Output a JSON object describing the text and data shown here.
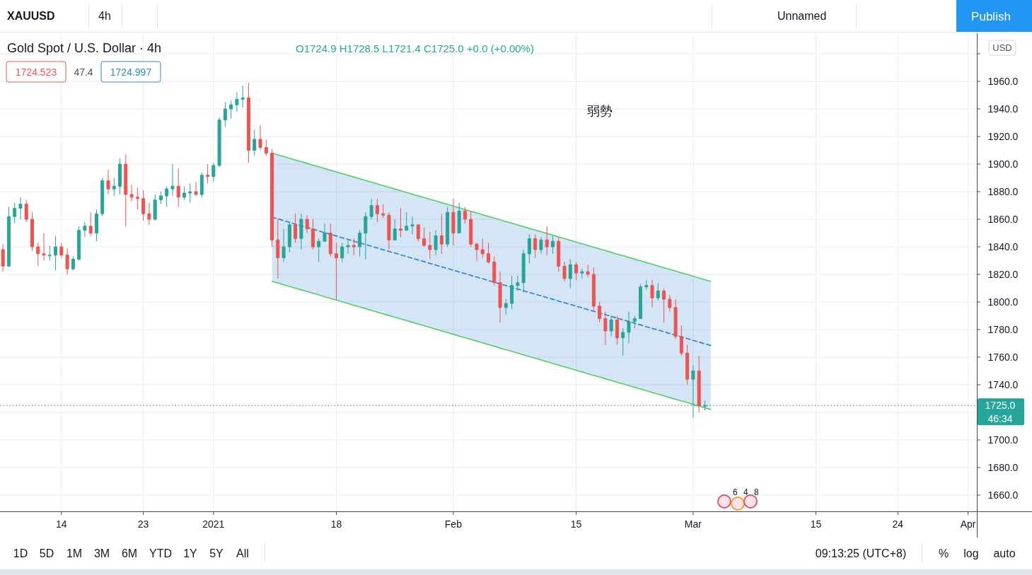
{
  "chart_data": {
    "type": "candlestick",
    "title": "Gold Spot / U.S. Dollar · 4h",
    "subtitle": "O1724.9 H1728.5 L1721.4 C1725.0 +0.0 (+0.00%)",
    "categories": [
      null,
      null,
      null,
      null,
      null,
      null,
      null,
      null,
      null,
      null,
      "14",
      null,
      null,
      null,
      null,
      null,
      null,
      null,
      null,
      null,
      null,
      null,
      null,
      null,
      "23",
      null,
      null,
      null,
      null,
      null,
      null,
      null,
      null,
      null,
      null,
      null,
      "2021",
      null,
      null,
      null,
      null,
      null,
      null,
      null,
      null,
      null,
      null,
      null,
      null,
      null,
      null,
      null,
      null,
      null,
      null,
      null,
      null,
      "18",
      null,
      null,
      null,
      null,
      null,
      null,
      null,
      null,
      null,
      null,
      null,
      null,
      null,
      null,
      null,
      null,
      null,
      null,
      null,
      "Feb",
      null,
      null,
      null,
      null,
      null,
      null,
      null,
      null,
      null,
      null,
      null,
      null,
      null,
      null,
      null,
      null,
      null,
      null,
      null,
      null,
      "15",
      null,
      null,
      null,
      null,
      null,
      null,
      null,
      null,
      null,
      null,
      null,
      null,
      null,
      null,
      null,
      null,
      null,
      null,
      null,
      "Mar",
      null,
      null,
      null,
      null,
      null,
      null,
      null,
      null,
      null,
      null,
      null,
      null,
      null,
      null,
      null,
      null,
      null,
      null,
      null,
      null,
      "15",
      null,
      null,
      null,
      null,
      null,
      null,
      null,
      null,
      null,
      null,
      null,
      null,
      null,
      "24",
      null,
      null,
      null,
      null,
      null,
      null,
      null,
      null,
      null,
      null,
      null,
      "Apr",
      null
    ],
    "ylim": [
      1648.2,
      1994.9
    ],
    "yticks": [
      {
        "value": 1660,
        "label": "1660.0"
      },
      {
        "value": 1680,
        "label": "1680.0"
      },
      {
        "value": 1700,
        "label": "1700.0"
      },
      {
        "value": 1720,
        "label": null
      },
      {
        "value": 1740,
        "label": "1740.0"
      },
      {
        "value": 1760,
        "label": "1760.0"
      },
      {
        "value": 1780,
        "label": "1780.0"
      },
      {
        "value": 1800,
        "label": "1800.0"
      },
      {
        "value": 1820,
        "label": "1820.0"
      },
      {
        "value": 1840,
        "label": "1840.0"
      },
      {
        "value": 1860,
        "label": "1860.0"
      },
      {
        "value": 1880,
        "label": "1880.0"
      },
      {
        "value": 1900,
        "label": "1900.0"
      },
      {
        "value": 1920,
        "label": "1920.0"
      },
      {
        "value": 1940,
        "label": "1940.0"
      },
      {
        "value": 1960,
        "label": "1960.0"
      },
      {
        "value": 1980,
        "label": null
      }
    ],
    "grid": true,
    "series": [
      {
        "ohlc": [
          [
            1838,
            1842,
            1822,
            1826
          ],
          [
            1826,
            1869,
            1826,
            1862
          ],
          [
            1862,
            1872,
            1857,
            1868
          ],
          [
            1868,
            1876,
            1860,
            1871
          ],
          [
            1871,
            1874,
            1858,
            1860
          ],
          [
            1860,
            1865,
            1837,
            1840
          ],
          [
            1840,
            1843,
            1826,
            1835
          ],
          [
            1835,
            1850,
            1830,
            1834
          ],
          [
            1834,
            1841,
            1830,
            1834
          ],
          [
            1834,
            1848,
            1823,
            1840
          ],
          [
            1840,
            1843,
            1832,
            1834
          ],
          [
            1834,
            1839,
            1820,
            1824
          ],
          [
            1824,
            1833,
            1823,
            1831
          ],
          [
            1831,
            1855,
            1830,
            1852
          ],
          [
            1852,
            1858,
            1847,
            1855
          ],
          [
            1855,
            1865,
            1848,
            1850
          ],
          [
            1850,
            1867,
            1844,
            1864
          ],
          [
            1864,
            1890,
            1862,
            1888
          ],
          [
            1888,
            1896,
            1878,
            1882
          ],
          [
            1882,
            1890,
            1877,
            1884
          ],
          [
            1884,
            1904,
            1878,
            1900
          ],
          [
            1900,
            1907,
            1855,
            1878
          ],
          [
            1878,
            1885,
            1873,
            1876
          ],
          [
            1876,
            1883,
            1867,
            1875
          ],
          [
            1875,
            1881,
            1859,
            1864
          ],
          [
            1864,
            1872,
            1856,
            1860
          ],
          [
            1860,
            1878,
            1859,
            1874
          ],
          [
            1874,
            1880,
            1871,
            1877
          ],
          [
            1877,
            1884,
            1869,
            1882
          ],
          [
            1882,
            1900,
            1877,
            1884
          ],
          [
            1884,
            1897,
            1869,
            1876
          ],
          [
            1876,
            1884,
            1874,
            1879
          ],
          [
            1879,
            1886,
            1872,
            1880
          ],
          [
            1880,
            1887,
            1877,
            1878
          ],
          [
            1878,
            1894,
            1876,
            1892
          ],
          [
            1892,
            1900,
            1886,
            1891
          ],
          [
            1891,
            1901,
            1887,
            1899
          ],
          [
            1899,
            1934,
            1898,
            1932
          ],
          [
            1932,
            1945,
            1927,
            1940
          ],
          [
            1940,
            1946,
            1933,
            1943
          ],
          [
            1943,
            1952,
            1938,
            1947
          ],
          [
            1947,
            1957,
            1941,
            1948
          ],
          [
            1948,
            1959,
            1901,
            1910
          ],
          [
            1910,
            1925,
            1906,
            1918
          ],
          [
            1918,
            1928,
            1910,
            1912
          ],
          [
            1912,
            1918,
            1906,
            1908
          ],
          [
            1908,
            1911,
            1840,
            1845
          ],
          [
            1845,
            1860,
            1817,
            1832
          ],
          [
            1832,
            1853,
            1829,
            1840
          ],
          [
            1840,
            1858,
            1836,
            1856
          ],
          [
            1856,
            1864,
            1843,
            1846
          ],
          [
            1846,
            1864,
            1838,
            1860
          ],
          [
            1860,
            1863,
            1850,
            1853
          ],
          [
            1853,
            1860,
            1838,
            1840
          ],
          [
            1840,
            1846,
            1829,
            1844
          ],
          [
            1844,
            1857,
            1844,
            1850
          ],
          [
            1850,
            1857,
            1833,
            1835
          ],
          [
            1835,
            1843,
            1802,
            1832
          ],
          [
            1832,
            1843,
            1829,
            1840
          ],
          [
            1840,
            1845,
            1835,
            1841
          ],
          [
            1841,
            1846,
            1834,
            1840
          ],
          [
            1840,
            1852,
            1833,
            1850
          ],
          [
            1850,
            1865,
            1831,
            1862
          ],
          [
            1862,
            1875,
            1860,
            1870
          ],
          [
            1870,
            1875,
            1858,
            1864
          ],
          [
            1864,
            1871,
            1861,
            1863
          ],
          [
            1863,
            1865,
            1838,
            1845
          ],
          [
            1845,
            1860,
            1845,
            1853
          ],
          [
            1853,
            1868,
            1847,
            1852
          ],
          [
            1852,
            1865,
            1852,
            1855
          ],
          [
            1855,
            1862,
            1849,
            1856
          ],
          [
            1856,
            1856,
            1844,
            1846
          ],
          [
            1846,
            1854,
            1840,
            1841
          ],
          [
            1841,
            1851,
            1831,
            1838
          ],
          [
            1838,
            1852,
            1834,
            1848
          ],
          [
            1848,
            1864,
            1835,
            1842
          ],
          [
            1842,
            1869,
            1840,
            1865
          ],
          [
            1865,
            1875,
            1841,
            1850
          ],
          [
            1850,
            1872,
            1850,
            1866
          ],
          [
            1866,
            1869,
            1857,
            1860
          ],
          [
            1860,
            1866,
            1840,
            1842
          ],
          [
            1842,
            1843,
            1830,
            1838
          ],
          [
            1838,
            1846,
            1832,
            1835
          ],
          [
            1835,
            1843,
            1828,
            1829
          ],
          [
            1829,
            1833,
            1812,
            1814
          ],
          [
            1814,
            1822,
            1785,
            1796
          ],
          [
            1796,
            1802,
            1791,
            1799
          ],
          [
            1799,
            1819,
            1795,
            1812
          ],
          [
            1812,
            1819,
            1808,
            1814
          ],
          [
            1814,
            1838,
            1807,
            1835
          ],
          [
            1835,
            1849,
            1828,
            1846
          ],
          [
            1846,
            1849,
            1832,
            1838
          ],
          [
            1838,
            1847,
            1835,
            1845
          ],
          [
            1845,
            1855,
            1834,
            1840
          ],
          [
            1840,
            1848,
            1835,
            1844
          ],
          [
            1844,
            1847,
            1822,
            1826
          ],
          [
            1826,
            1829,
            1815,
            1817
          ],
          [
            1817,
            1831,
            1810,
            1827
          ],
          [
            1827,
            1829,
            1816,
            1821
          ],
          [
            1821,
            1824,
            1817,
            1822
          ],
          [
            1822,
            1827,
            1818,
            1820
          ],
          [
            1820,
            1825,
            1793,
            1797
          ],
          [
            1797,
            1800,
            1785,
            1788
          ],
          [
            1788,
            1793,
            1769,
            1779
          ],
          [
            1779,
            1790,
            1775,
            1787
          ],
          [
            1787,
            1790,
            1769,
            1774
          ],
          [
            1774,
            1781,
            1761,
            1778
          ],
          [
            1778,
            1793,
            1770,
            1786
          ],
          [
            1786,
            1790,
            1781,
            1788
          ],
          [
            1788,
            1813,
            1788,
            1811
          ],
          [
            1811,
            1816,
            1809,
            1812
          ],
          [
            1812,
            1816,
            1796,
            1803
          ],
          [
            1803,
            1814,
            1801,
            1808
          ],
          [
            1808,
            1810,
            1785,
            1802
          ],
          [
            1802,
            1805,
            1793,
            1796
          ],
          [
            1796,
            1802,
            1773,
            1775
          ],
          [
            1775,
            1783,
            1761,
            1763
          ],
          [
            1763,
            1769,
            1740,
            1744
          ],
          [
            1744,
            1754,
            1716,
            1750
          ],
          [
            1750,
            1761,
            1720,
            1725
          ],
          [
            1724.9,
            1728.5,
            1721.4,
            1725.0
          ],
          null,
          null,
          null,
          null,
          null,
          null,
          null,
          null,
          null,
          null,
          null,
          null,
          null,
          null,
          null,
          null,
          null,
          null,
          null,
          null,
          null,
          null,
          null,
          null,
          null,
          null,
          null,
          null,
          null,
          null,
          null,
          null,
          null,
          null,
          null,
          null,
          null,
          null,
          null,
          null,
          null,
          null,
          null,
          null,
          null,
          null
        ],
        "colors": [
          "#ef5350",
          "#26a69a",
          "#26a69a",
          "#26a69a",
          "#ef5350",
          "#ef5350",
          "#ef5350",
          "#ef5350",
          "#26a69a",
          "#26a69a",
          "#ef5350",
          "#ef5350",
          "#26a69a",
          "#26a69a",
          "#26a69a",
          "#ef5350",
          "#26a69a",
          "#26a69a",
          "#ef5350",
          "#26a69a",
          "#26a69a",
          "#ef5350",
          "#ef5350",
          "#ef5350",
          "#ef5350",
          "#ef5350",
          "#26a69a",
          "#26a69a",
          "#26a69a",
          "#26a69a",
          "#ef5350",
          "#26a69a",
          "#26a69a",
          "#ef5350",
          "#26a69a",
          "#ef5350",
          "#26a69a",
          "#26a69a",
          "#26a69a",
          "#26a69a",
          "#26a69a",
          "#26a69a",
          "#ef5350",
          "#26a69a",
          "#ef5350",
          "#ef5350",
          "#ef5350",
          "#ef5350",
          "#26a69a",
          "#26a69a",
          "#ef5350",
          "#26a69a",
          "#ef5350",
          "#ef5350",
          "#26a69a",
          "#26a69a",
          "#ef5350",
          "#ef5350",
          "#26a69a",
          "#26a69a",
          "#ef5350",
          "#26a69a",
          "#26a69a",
          "#26a69a",
          "#ef5350",
          "#ef5350",
          "#ef5350",
          "#26a69a",
          "#ef5350",
          "#26a69a",
          "#26a69a",
          "#ef5350",
          "#ef5350",
          "#ef5350",
          "#26a69a",
          "#ef5350",
          "#26a69a",
          "#ef5350",
          "#26a69a",
          "#ef5350",
          "#ef5350",
          "#ef5350",
          "#ef5350",
          "#ef5350",
          "#ef5350",
          "#ef5350",
          "#26a69a",
          "#26a69a",
          "#26a69a",
          "#26a69a",
          "#26a69a",
          "#ef5350",
          "#26a69a",
          "#ef5350",
          "#26a69a",
          "#ef5350",
          "#ef5350",
          "#26a69a",
          "#ef5350",
          "#26a69a",
          "#ef5350",
          "#ef5350",
          "#ef5350",
          "#ef5350",
          "#26a69a",
          "#ef5350",
          "#26a69a",
          "#26a69a",
          "#26a69a",
          "#26a69a",
          "#26a69a",
          "#ef5350",
          "#26a69a",
          "#ef5350",
          "#ef5350",
          "#ef5350",
          "#ef5350",
          "#ef5350",
          "#26a69a",
          "#ef5350",
          "#26a69a",
          null,
          null,
          null,
          null,
          null,
          null,
          null,
          null,
          null,
          null,
          null,
          null,
          null,
          null,
          null,
          null,
          null,
          null,
          null,
          null,
          null,
          null,
          null,
          null,
          null,
          null,
          null,
          null,
          null,
          null,
          null,
          null,
          null,
          null,
          null,
          null,
          null,
          null,
          null,
          null,
          null,
          null,
          null,
          null,
          null,
          null
        ]
      },
      {
        "type": "line",
        "color": "#5cd65c",
        "values": [
          null,
          null,
          null,
          null,
          null,
          null,
          null,
          null,
          null,
          null,
          null,
          null,
          null,
          null,
          null,
          null,
          null,
          null,
          null,
          null,
          null,
          null,
          null,
          null,
          null,
          null,
          null,
          null,
          null,
          null,
          null,
          null,
          null,
          null,
          null,
          null,
          null,
          null,
          null,
          null,
          null,
          null,
          null,
          null,
          null,
          null,
          1908.0,
          1906.8,
          1905.5,
          1904.3,
          1903.0,
          1901.8,
          1900.6,
          1899.3,
          1898.1,
          1896.8,
          1895.6,
          1894.4,
          1893.1,
          1891.9,
          1890.6,
          1889.4,
          1888.2,
          1886.9,
          1885.7,
          1884.4,
          1883.2,
          1882.0,
          1880.7,
          1879.5,
          1878.2,
          1877.0,
          1875.8,
          1874.5,
          1873.3,
          1872.0,
          1870.8,
          1869.6,
          1868.3,
          1867.1,
          1865.8,
          1864.6,
          1863.4,
          1862.1,
          1860.9,
          1859.6,
          1858.4,
          1857.2,
          1855.9,
          1854.7,
          1853.4,
          1852.2,
          1851.0,
          1849.7,
          1848.5,
          1847.2,
          1846.0,
          1844.8,
          1843.5,
          1842.3,
          1841.0,
          1839.8,
          1838.6,
          1837.3,
          1836.1,
          1834.8,
          1833.6,
          1832.4,
          1831.1,
          1829.9,
          1828.6,
          1827.4,
          1826.2,
          1824.9,
          1823.7,
          1822.4,
          1821.2,
          1820.0,
          1818.7,
          1817.5,
          1816.2,
          1815.0,
          null,
          null,
          null,
          null,
          null,
          null,
          null,
          null,
          null,
          null,
          null,
          null,
          null,
          null,
          null,
          null,
          null,
          null,
          null,
          null,
          null,
          null,
          null,
          null,
          null,
          null,
          null,
          null,
          null,
          null,
          null,
          null,
          null,
          null,
          null,
          null,
          null,
          null,
          null,
          null,
          null,
          null,
          null,
          null,
          null
        ]
      },
      {
        "type": "line",
        "color": "#5cd65c",
        "values": [
          null,
          null,
          null,
          null,
          null,
          null,
          null,
          null,
          null,
          null,
          null,
          null,
          null,
          null,
          null,
          null,
          null,
          null,
          null,
          null,
          null,
          null,
          null,
          null,
          null,
          null,
          null,
          null,
          null,
          null,
          null,
          null,
          null,
          null,
          null,
          null,
          null,
          null,
          null,
          null,
          null,
          null,
          null,
          null,
          null,
          null,
          1815.0,
          1813.8,
          1812.5,
          1811.3,
          1810.0,
          1808.8,
          1807.6,
          1806.3,
          1805.1,
          1803.8,
          1802.6,
          1801.4,
          1800.1,
          1798.9,
          1797.6,
          1796.4,
          1795.2,
          1793.9,
          1792.7,
          1791.4,
          1790.2,
          1789.0,
          1787.7,
          1786.5,
          1785.2,
          1784.0,
          1782.8,
          1781.5,
          1780.3,
          1779.0,
          1777.8,
          1776.6,
          1775.3,
          1774.1,
          1772.8,
          1771.6,
          1770.4,
          1769.1,
          1767.9,
          1766.6,
          1765.4,
          1764.2,
          1762.9,
          1761.7,
          1760.4,
          1759.2,
          1758.0,
          1756.7,
          1755.5,
          1754.2,
          1753.0,
          1751.8,
          1750.5,
          1749.3,
          1748.0,
          1746.8,
          1745.6,
          1744.3,
          1743.1,
          1741.8,
          1740.6,
          1739.4,
          1738.1,
          1736.9,
          1735.6,
          1734.4,
          1733.2,
          1731.9,
          1730.7,
          1729.4,
          1728.2,
          1727.0,
          1725.7,
          1724.5,
          1723.2,
          1722.0,
          null,
          null,
          null,
          null,
          null,
          null,
          null,
          null,
          null,
          null,
          null,
          null,
          null,
          null,
          null,
          null,
          null,
          null,
          null,
          null,
          null,
          null,
          null,
          null,
          null,
          null,
          null,
          null,
          null,
          null,
          null,
          null,
          null,
          null,
          null,
          null,
          null,
          null,
          null,
          null,
          null,
          null,
          null,
          null,
          null
        ]
      },
      {
        "type": "line",
        "color": "#2a7fd0",
        "line_style": "dashed",
        "values": [
          null,
          null,
          null,
          null,
          null,
          null,
          null,
          null,
          null,
          null,
          null,
          null,
          null,
          null,
          null,
          null,
          null,
          null,
          null,
          null,
          null,
          null,
          null,
          null,
          null,
          null,
          null,
          null,
          null,
          null,
          null,
          null,
          null,
          null,
          null,
          null,
          null,
          null,
          null,
          null,
          null,
          null,
          null,
          null,
          null,
          null,
          1861.5,
          1860.3,
          1859.0,
          1857.8,
          1856.5,
          1855.3,
          1854.1,
          1852.8,
          1851.6,
          1850.3,
          1849.1,
          1847.9,
          1846.6,
          1845.4,
          1844.1,
          1842.9,
          1841.7,
          1840.4,
          1839.2,
          1837.9,
          1836.7,
          1835.5,
          1834.2,
          1833.0,
          1831.7,
          1830.5,
          1829.3,
          1828.0,
          1826.8,
          1825.5,
          1824.3,
          1823.1,
          1821.8,
          1820.6,
          1819.3,
          1818.1,
          1816.9,
          1815.6,
          1814.4,
          1813.1,
          1811.9,
          1810.7,
          1809.4,
          1808.2,
          1806.9,
          1805.7,
          1804.5,
          1803.2,
          1802.0,
          1800.7,
          1799.5,
          1798.3,
          1797.0,
          1795.8,
          1794.5,
          1793.3,
          1792.1,
          1790.8,
          1789.6,
          1788.3,
          1787.1,
          1785.9,
          1784.6,
          1783.4,
          1782.1,
          1780.9,
          1779.7,
          1778.4,
          1777.2,
          1775.9,
          1774.7,
          1773.5,
          1772.2,
          1771.0,
          1769.7,
          1768.5,
          null,
          null,
          null,
          null,
          null,
          null,
          null,
          null,
          null,
          null,
          null,
          null,
          null,
          null,
          null,
          null,
          null,
          null,
          null,
          null,
          null,
          null,
          null,
          null,
          null,
          null,
          null,
          null,
          null,
          null,
          null,
          null,
          null,
          null,
          null,
          null,
          null,
          null,
          null,
          null,
          null,
          null,
          null,
          null,
          null
        ],
        "lower": [
          null,
          null,
          null,
          null,
          null,
          null,
          null,
          null,
          null,
          null,
          null,
          null,
          null,
          null,
          null,
          null,
          null,
          null,
          null,
          null,
          null,
          null,
          null,
          null,
          null,
          null,
          null,
          null,
          null,
          null,
          null,
          null,
          null,
          null,
          null,
          null,
          null,
          null,
          null,
          null,
          null,
          null,
          null,
          null,
          null,
          null,
          1815.0,
          1813.8,
          1812.5,
          1811.3,
          1810.0,
          1808.8,
          1807.6,
          1806.3,
          1805.1,
          1803.8,
          1802.6,
          1801.4,
          1800.1,
          1798.9,
          1797.6,
          1796.4,
          1795.2,
          1793.9,
          1792.7,
          1791.4,
          1790.2,
          1789.0,
          1787.7,
          1786.5,
          1785.2,
          1784.0,
          1782.8,
          1781.5,
          1780.3,
          1779.0,
          1777.8,
          1776.6,
          1775.3,
          1774.1,
          1772.8,
          1771.6,
          1770.4,
          1769.1,
          1767.9,
          1766.6,
          1765.4,
          1764.2,
          1762.9,
          1761.7,
          1760.4,
          1759.2,
          1758.0,
          1756.7,
          1755.5,
          1754.2,
          1753.0,
          1751.8,
          1750.5,
          1749.3,
          1748.0,
          1746.8,
          1745.6,
          1744.3,
          1743.1,
          1741.8,
          1740.6,
          1739.4,
          1738.1,
          1736.9,
          1735.6,
          1734.4,
          1733.2,
          1731.9,
          1730.7,
          1729.4,
          1728.2,
          1727.0,
          1725.7,
          1724.5,
          1723.2,
          1722.0,
          null,
          null,
          null,
          null,
          null,
          null,
          null,
          null,
          null,
          null,
          null,
          null,
          null,
          null,
          null,
          null,
          null,
          null,
          null,
          null,
          null,
          null,
          null,
          null,
          null,
          null,
          null,
          null,
          null,
          null,
          null,
          null,
          null,
          null,
          null,
          null,
          null,
          null,
          null,
          null,
          null,
          null,
          null,
          null,
          null
        ],
        "upper": [
          null,
          null,
          null,
          null,
          null,
          null,
          null,
          null,
          null,
          null,
          null,
          null,
          null,
          null,
          null,
          null,
          null,
          null,
          null,
          null,
          null,
          null,
          null,
          null,
          null,
          null,
          null,
          null,
          null,
          null,
          null,
          null,
          null,
          null,
          null,
          null,
          null,
          null,
          null,
          null,
          null,
          null,
          null,
          null,
          null,
          null,
          1908.0,
          1906.8,
          1905.5,
          1904.3,
          1903.0,
          1901.8,
          1900.6,
          1899.3,
          1898.1,
          1896.8,
          1895.6,
          1894.4,
          1893.1,
          1891.9,
          1890.6,
          1889.4,
          1888.2,
          1886.9,
          1885.7,
          1884.4,
          1883.2,
          1882.0,
          1880.7,
          1879.5,
          1878.2,
          1877.0,
          1875.8,
          1874.5,
          1873.3,
          1872.0,
          1870.8,
          1869.6,
          1868.3,
          1867.1,
          1865.8,
          1864.6,
          1863.4,
          1862.1,
          1860.9,
          1859.6,
          1858.4,
          1857.2,
          1855.9,
          1854.7,
          1853.4,
          1852.2,
          1851.0,
          1849.7,
          1848.5,
          1847.2,
          1846.0,
          1844.8,
          1843.5,
          1842.3,
          1841.0,
          1839.8,
          1838.6,
          1837.3,
          1836.1,
          1834.8,
          1833.6,
          1832.4,
          1831.1,
          1829.9,
          1828.6,
          1827.4,
          1826.2,
          1824.9,
          1823.7,
          1822.4,
          1821.2,
          1820.0,
          1818.7,
          1817.5,
          1816.2,
          1815.0,
          null,
          null,
          null,
          null,
          null,
          null,
          null,
          null,
          null,
          null,
          null,
          null,
          null,
          null,
          null,
          null,
          null,
          null,
          null,
          null,
          null,
          null,
          null,
          null,
          null,
          null,
          null,
          null,
          null,
          null,
          null,
          null,
          null,
          null,
          null,
          null,
          null,
          null,
          null,
          null,
          null,
          null,
          null,
          null,
          null
        ]
      }
    ],
    "ref_lines": [
      {
        "axis": "y",
        "value": 1725.0,
        "label": "1725.0",
        "color": "#5d6670",
        "line_style": "dotted"
      }
    ],
    "annotations": [
      "XAUUSD",
      "4h",
      "Unnamed",
      "Publish",
      "1724.523",
      "47.4",
      "1724.997",
      "USD",
      "弱勢",
      "46:34",
      "6 4 8",
      "1D",
      "5D",
      "1M",
      "3M",
      "6M",
      "YTD",
      "1Y",
      "5Y",
      "All",
      "09:13:25 (UTC+8)",
      "%",
      "log",
      "auto"
    ]
  }
}
